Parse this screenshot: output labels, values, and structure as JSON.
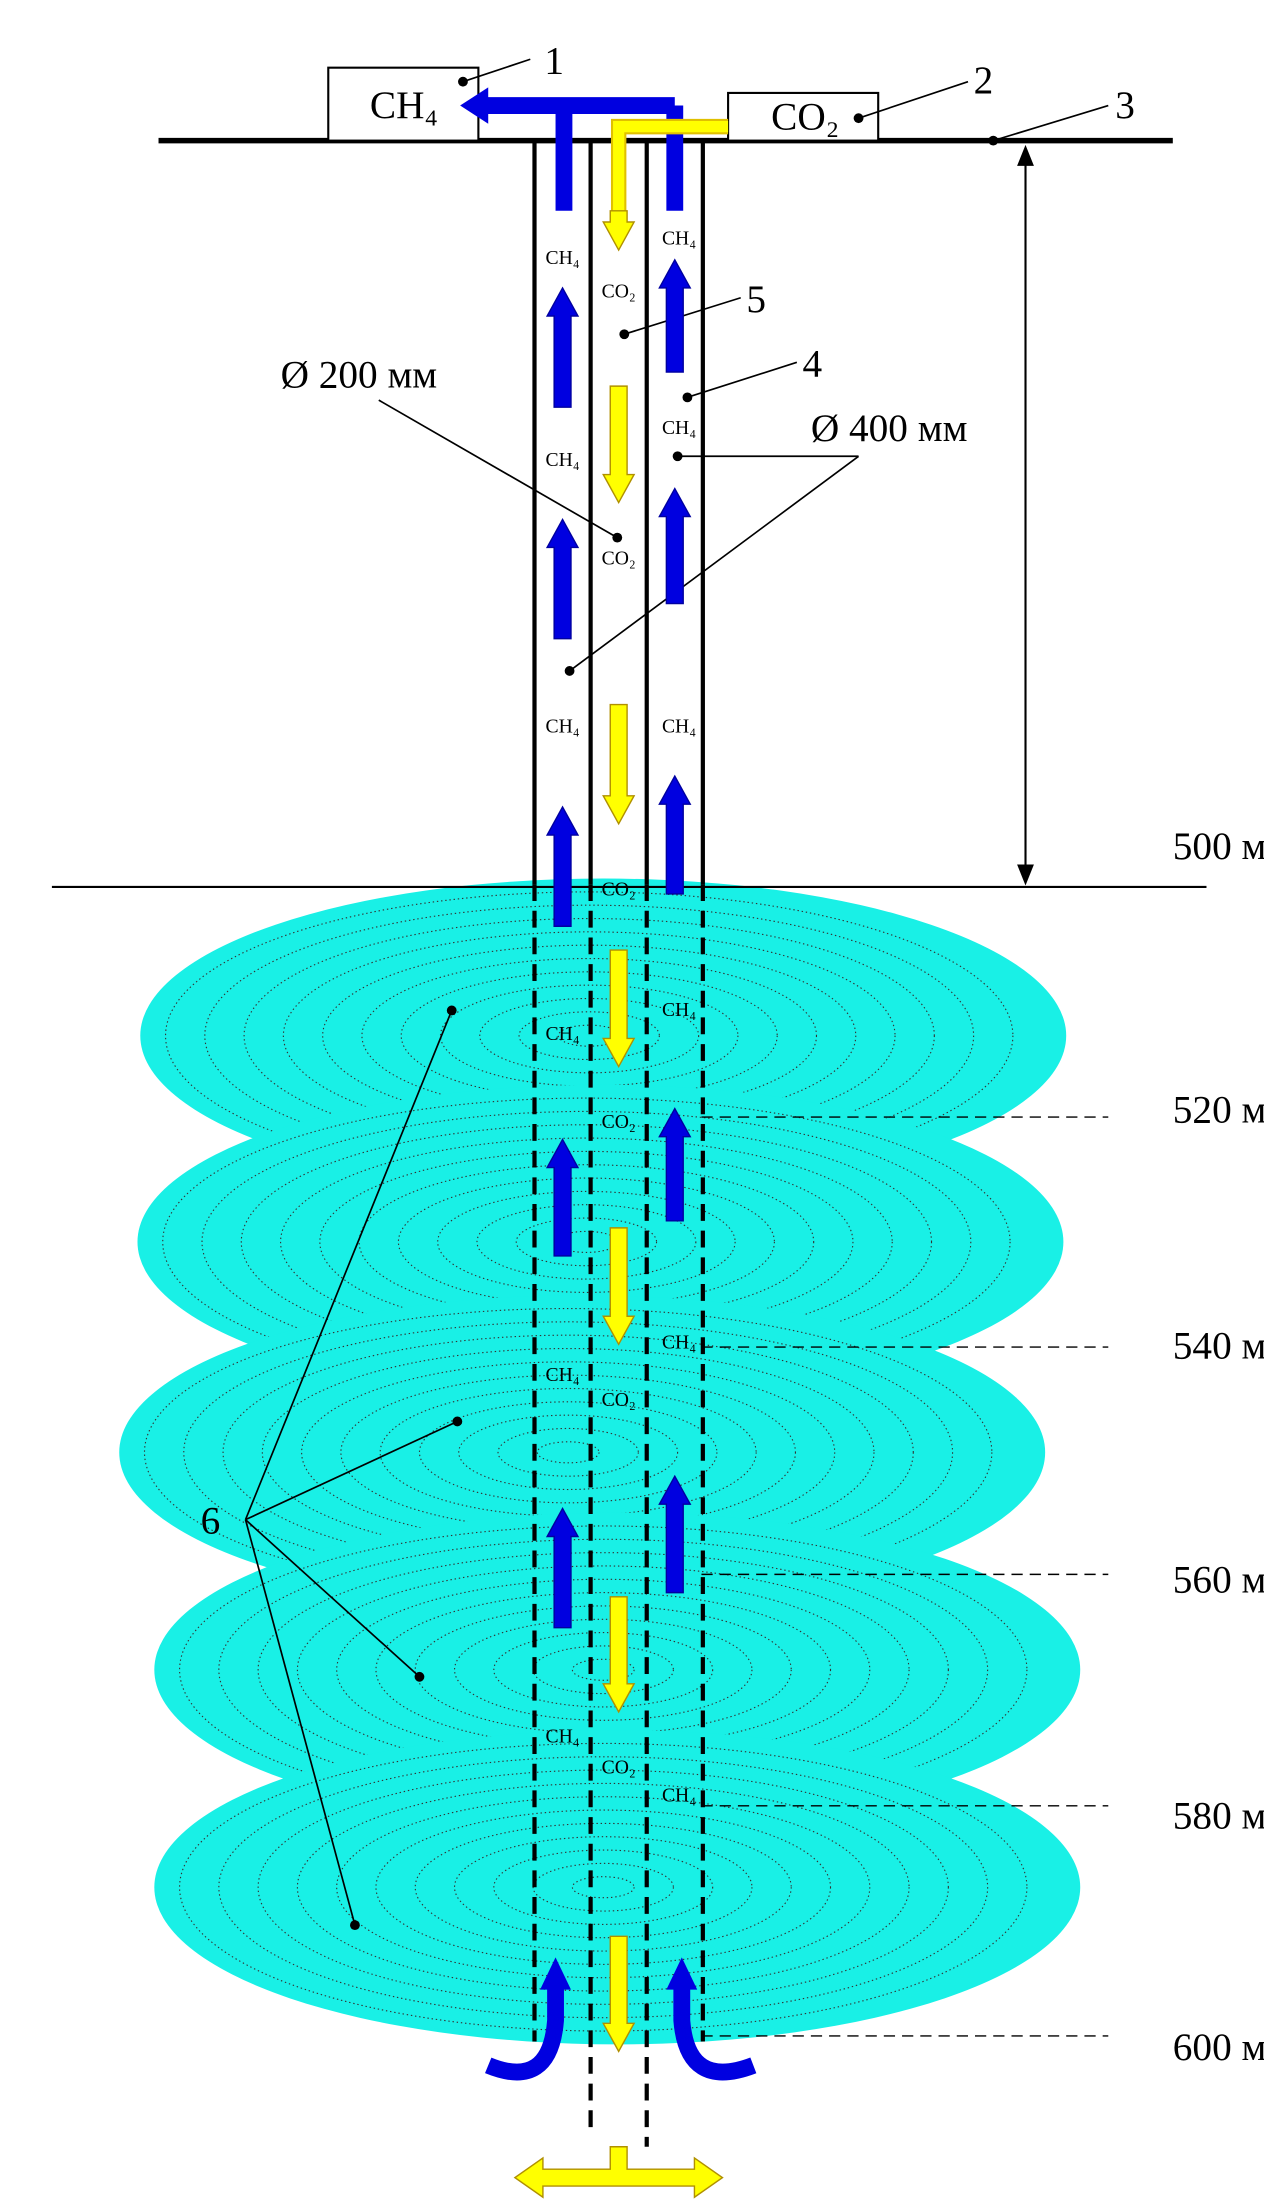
{
  "gases": {
    "methane": "CH₄",
    "carbon_dioxide": "CO₂"
  },
  "callouts": [
    "1",
    "2",
    "3",
    "4",
    "5",
    "6"
  ],
  "diameters": {
    "inner": "Ø 200 мм",
    "outer": "Ø 400 мм"
  },
  "depths": [
    "500 м",
    "520 м",
    "540 м",
    "560 м",
    "580 м",
    "600 м"
  ]
}
